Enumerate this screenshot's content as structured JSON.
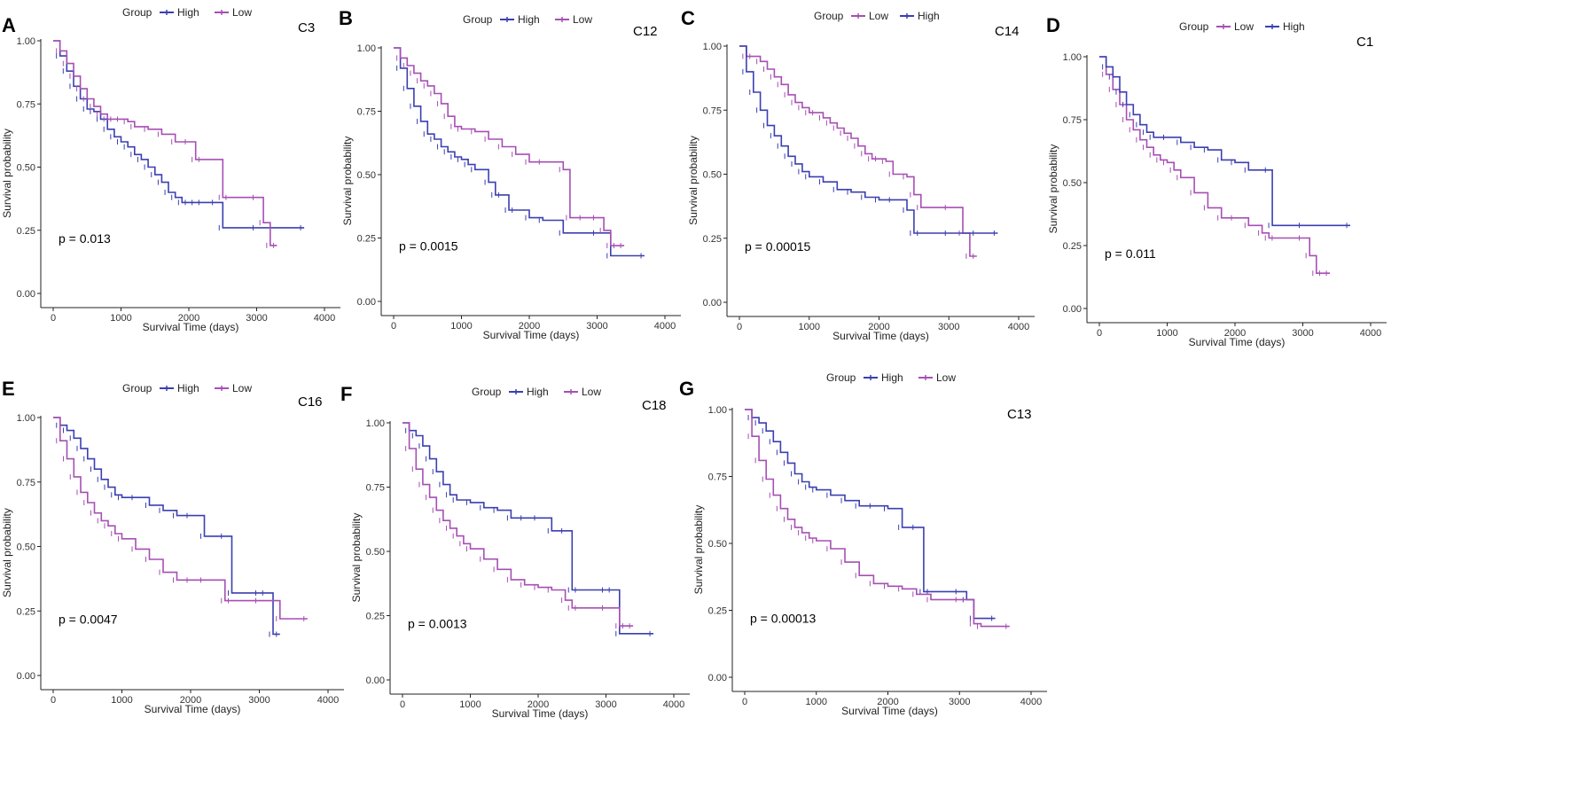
{
  "figure": {
    "axis_x_label": "Survival Time (days)",
    "axis_y_label": "Survival probability",
    "legend_title": "Group",
    "colors": {
      "High": "#3b3fb0",
      "Low": "#a64fb3",
      "axis": "#222222"
    }
  },
  "chart_data": [
    {
      "type": "line",
      "panel_letter": "A",
      "cluster": "C3",
      "p_value": "p = 0.013",
      "legend_order": [
        "High",
        "Low"
      ],
      "xlim": [
        0,
        4000
      ],
      "ylim": [
        0,
        1
      ],
      "x_ticks": [
        "0",
        "1000",
        "2000",
        "3000",
        "4000"
      ],
      "y_ticks": [
        "0.00",
        "0.25",
        "0.50",
        "0.75",
        "1.00"
      ],
      "series": [
        {
          "name": "High",
          "x": [
            0,
            100,
            200,
            300,
            400,
            500,
            600,
            700,
            800,
            900,
            1000,
            1100,
            1200,
            1300,
            1400,
            1500,
            1600,
            1700,
            1800,
            1900,
            2000,
            2100,
            2200,
            2400,
            2500,
            3000,
            3700
          ],
          "y": [
            1.0,
            0.94,
            0.88,
            0.82,
            0.77,
            0.73,
            0.72,
            0.69,
            0.65,
            0.62,
            0.6,
            0.58,
            0.55,
            0.53,
            0.5,
            0.47,
            0.44,
            0.4,
            0.38,
            0.36,
            0.36,
            0.36,
            0.36,
            0.36,
            0.26,
            0.26,
            0.26
          ]
        },
        {
          "name": "Low",
          "x": [
            0,
            100,
            200,
            300,
            400,
            500,
            600,
            700,
            800,
            900,
            1000,
            1100,
            1200,
            1400,
            1600,
            1800,
            2000,
            2100,
            2200,
            2500,
            2600,
            3000,
            3100,
            3200,
            3300
          ],
          "y": [
            1.0,
            0.96,
            0.91,
            0.86,
            0.81,
            0.77,
            0.74,
            0.71,
            0.69,
            0.69,
            0.69,
            0.68,
            0.66,
            0.65,
            0.63,
            0.6,
            0.6,
            0.53,
            0.53,
            0.38,
            0.38,
            0.38,
            0.28,
            0.19,
            0.19
          ]
        }
      ]
    },
    {
      "type": "line",
      "panel_letter": "B",
      "cluster": "C12",
      "p_value": "p = 0.0015",
      "legend_order": [
        "High",
        "Low"
      ],
      "xlim": [
        0,
        4000
      ],
      "ylim": [
        0,
        1
      ],
      "x_ticks": [
        "0",
        "1000",
        "2000",
        "3000",
        "4000"
      ],
      "y_ticks": [
        "0.00",
        "0.25",
        "0.50",
        "0.75",
        "1.00"
      ],
      "series": [
        {
          "name": "High",
          "x": [
            0,
            100,
            200,
            300,
            400,
            500,
            600,
            700,
            800,
            900,
            1000,
            1100,
            1200,
            1400,
            1500,
            1600,
            1700,
            1800,
            2000,
            2200,
            2500,
            3000,
            3200,
            3700
          ],
          "y": [
            1.0,
            0.92,
            0.84,
            0.77,
            0.71,
            0.66,
            0.64,
            0.61,
            0.59,
            0.57,
            0.56,
            0.54,
            0.52,
            0.47,
            0.42,
            0.42,
            0.36,
            0.36,
            0.33,
            0.32,
            0.27,
            0.27,
            0.18,
            0.18
          ]
        },
        {
          "name": "Low",
          "x": [
            0,
            100,
            200,
            300,
            400,
            500,
            600,
            700,
            800,
            900,
            1000,
            1200,
            1400,
            1600,
            1800,
            2000,
            2200,
            2500,
            2600,
            2800,
            3000,
            3100,
            3200,
            3300,
            3400
          ],
          "y": [
            1.0,
            0.96,
            0.93,
            0.9,
            0.87,
            0.85,
            0.82,
            0.78,
            0.73,
            0.69,
            0.68,
            0.67,
            0.64,
            0.61,
            0.58,
            0.55,
            0.55,
            0.52,
            0.33,
            0.33,
            0.33,
            0.28,
            0.22,
            0.22,
            0.22
          ]
        }
      ]
    },
    {
      "type": "line",
      "panel_letter": "C",
      "cluster": "C14",
      "p_value": "p = 0.00015",
      "legend_order": [
        "Low",
        "High"
      ],
      "xlim": [
        0,
        4000
      ],
      "ylim": [
        0,
        1
      ],
      "x_ticks": [
        "0",
        "1000",
        "2000",
        "3000",
        "4000"
      ],
      "y_ticks": [
        "0.00",
        "0.25",
        "0.50",
        "0.75",
        "1.00"
      ],
      "series": [
        {
          "name": "Low",
          "x": [
            0,
            100,
            200,
            300,
            400,
            500,
            600,
            700,
            800,
            900,
            1000,
            1100,
            1200,
            1300,
            1400,
            1500,
            1600,
            1700,
            1800,
            1900,
            2000,
            2100,
            2200,
            2400,
            2500,
            2600,
            3000,
            3200,
            3300,
            3400
          ],
          "y": [
            1.0,
            0.96,
            0.96,
            0.94,
            0.91,
            0.88,
            0.85,
            0.81,
            0.78,
            0.76,
            0.74,
            0.74,
            0.72,
            0.7,
            0.68,
            0.66,
            0.64,
            0.61,
            0.58,
            0.56,
            0.56,
            0.55,
            0.5,
            0.49,
            0.42,
            0.37,
            0.37,
            0.27,
            0.18,
            0.18
          ]
        },
        {
          "name": "High",
          "x": [
            0,
            100,
            200,
            300,
            400,
            500,
            600,
            700,
            800,
            900,
            1000,
            1200,
            1400,
            1600,
            1800,
            2000,
            2200,
            2400,
            2500,
            2600,
            3000,
            3400,
            3700
          ],
          "y": [
            1.0,
            0.9,
            0.82,
            0.75,
            0.69,
            0.65,
            0.61,
            0.57,
            0.54,
            0.51,
            0.49,
            0.47,
            0.44,
            0.43,
            0.41,
            0.4,
            0.4,
            0.36,
            0.27,
            0.27,
            0.27,
            0.27,
            0.27
          ]
        }
      ]
    },
    {
      "type": "line",
      "panel_letter": "D",
      "cluster": "C1",
      "p_value": "p = 0.011",
      "legend_order": [
        "Low",
        "High"
      ],
      "xlim": [
        0,
        4000
      ],
      "ylim": [
        0,
        1
      ],
      "x_ticks": [
        "0",
        "1000",
        "2000",
        "3000",
        "4000"
      ],
      "y_ticks": [
        "0.00",
        "0.25",
        "0.50",
        "0.75",
        "1.00"
      ],
      "series": [
        {
          "name": "Low",
          "x": [
            0,
            100,
            200,
            300,
            400,
            500,
            600,
            700,
            800,
            900,
            1000,
            1100,
            1200,
            1400,
            1600,
            1800,
            2000,
            2200,
            2400,
            2500,
            2600,
            3000,
            3100,
            3200,
            3300,
            3400
          ],
          "y": [
            1.0,
            0.93,
            0.87,
            0.81,
            0.75,
            0.71,
            0.67,
            0.64,
            0.61,
            0.59,
            0.58,
            0.55,
            0.52,
            0.46,
            0.4,
            0.36,
            0.36,
            0.33,
            0.3,
            0.28,
            0.28,
            0.28,
            0.21,
            0.14,
            0.14,
            0.14
          ]
        },
        {
          "name": "High",
          "x": [
            0,
            100,
            200,
            300,
            400,
            500,
            600,
            700,
            800,
            1000,
            1200,
            1400,
            1600,
            1800,
            2000,
            2200,
            2500,
            2550,
            3000,
            3700
          ],
          "y": [
            1.0,
            0.96,
            0.92,
            0.86,
            0.81,
            0.77,
            0.73,
            0.7,
            0.68,
            0.68,
            0.66,
            0.64,
            0.63,
            0.59,
            0.58,
            0.55,
            0.55,
            0.33,
            0.33,
            0.33
          ]
        }
      ]
    },
    {
      "type": "line",
      "panel_letter": "E",
      "cluster": "C16",
      "p_value": "p = 0.0047",
      "legend_order": [
        "High",
        "Low"
      ],
      "xlim": [
        0,
        4000
      ],
      "ylim": [
        0,
        1
      ],
      "x_ticks": [
        "0",
        "1000",
        "2000",
        "3000",
        "4000"
      ],
      "y_ticks": [
        "0.00",
        "0.25",
        "0.50",
        "0.75",
        "1.00"
      ],
      "series": [
        {
          "name": "High",
          "x": [
            0,
            100,
            200,
            300,
            400,
            500,
            600,
            700,
            800,
            900,
            1000,
            1200,
            1400,
            1600,
            1800,
            2000,
            2200,
            2500,
            2600,
            3000,
            3100,
            3200,
            3300
          ],
          "y": [
            1.0,
            0.97,
            0.95,
            0.92,
            0.88,
            0.84,
            0.8,
            0.76,
            0.73,
            0.7,
            0.69,
            0.69,
            0.66,
            0.64,
            0.62,
            0.62,
            0.54,
            0.54,
            0.32,
            0.32,
            0.32,
            0.16,
            0.16
          ]
        },
        {
          "name": "Low",
          "x": [
            0,
            100,
            200,
            300,
            400,
            500,
            600,
            700,
            800,
            900,
            1000,
            1200,
            1400,
            1600,
            1800,
            2000,
            2200,
            2500,
            2600,
            3000,
            3300,
            3700
          ],
          "y": [
            1.0,
            0.91,
            0.84,
            0.77,
            0.71,
            0.67,
            0.63,
            0.6,
            0.58,
            0.55,
            0.53,
            0.49,
            0.45,
            0.4,
            0.37,
            0.37,
            0.37,
            0.29,
            0.29,
            0.29,
            0.22,
            0.22
          ]
        }
      ]
    },
    {
      "type": "line",
      "panel_letter": "F",
      "cluster": "C18",
      "p_value": "p = 0.0013",
      "legend_order": [
        "High",
        "Low"
      ],
      "xlim": [
        0,
        4000
      ],
      "ylim": [
        0,
        1
      ],
      "x_ticks": [
        "0",
        "1000",
        "2000",
        "3000",
        "4000"
      ],
      "y_ticks": [
        "0.00",
        "0.25",
        "0.50",
        "0.75",
        "1.00"
      ],
      "series": [
        {
          "name": "High",
          "x": [
            0,
            100,
            200,
            300,
            400,
            500,
            600,
            700,
            800,
            1000,
            1200,
            1400,
            1600,
            1800,
            2000,
            2200,
            2400,
            2500,
            2600,
            3000,
            3100,
            3200,
            3700
          ],
          "y": [
            1.0,
            0.97,
            0.95,
            0.91,
            0.86,
            0.81,
            0.76,
            0.72,
            0.7,
            0.69,
            0.67,
            0.66,
            0.63,
            0.63,
            0.63,
            0.58,
            0.58,
            0.35,
            0.35,
            0.35,
            0.35,
            0.18,
            0.18
          ]
        },
        {
          "name": "Low",
          "x": [
            0,
            100,
            200,
            300,
            400,
            500,
            600,
            700,
            800,
            900,
            1000,
            1200,
            1400,
            1600,
            1800,
            2000,
            2200,
            2400,
            2500,
            2600,
            3000,
            3200,
            3300,
            3400
          ],
          "y": [
            1.0,
            0.9,
            0.82,
            0.76,
            0.71,
            0.66,
            0.62,
            0.59,
            0.56,
            0.53,
            0.51,
            0.47,
            0.43,
            0.39,
            0.37,
            0.36,
            0.35,
            0.31,
            0.28,
            0.28,
            0.28,
            0.21,
            0.21,
            0.21
          ]
        }
      ]
    },
    {
      "type": "line",
      "panel_letter": "G",
      "cluster": "C13",
      "p_value": "p = 0.00013",
      "legend_order": [
        "High",
        "Low"
      ],
      "xlim": [
        0,
        4000
      ],
      "ylim": [
        0,
        1
      ],
      "x_ticks": [
        "0",
        "1000",
        "2000",
        "3000",
        "4000"
      ],
      "y_ticks": [
        "0.00",
        "0.25",
        "0.50",
        "0.75",
        "1.00"
      ],
      "series": [
        {
          "name": "High",
          "x": [
            0,
            100,
            200,
            300,
            400,
            500,
            600,
            700,
            800,
            900,
            1000,
            1200,
            1400,
            1600,
            1800,
            2000,
            2200,
            2400,
            2500,
            2600,
            3000,
            3100,
            3200,
            3500
          ],
          "y": [
            1.0,
            0.97,
            0.95,
            0.92,
            0.88,
            0.84,
            0.8,
            0.76,
            0.73,
            0.71,
            0.7,
            0.68,
            0.66,
            0.64,
            0.64,
            0.63,
            0.56,
            0.56,
            0.32,
            0.32,
            0.32,
            0.29,
            0.22,
            0.22
          ]
        },
        {
          "name": "Low",
          "x": [
            0,
            100,
            200,
            300,
            400,
            500,
            600,
            700,
            800,
            900,
            1000,
            1200,
            1400,
            1600,
            1800,
            2000,
            2200,
            2400,
            2600,
            3000,
            3200,
            3300,
            3700
          ],
          "y": [
            1.0,
            0.9,
            0.81,
            0.74,
            0.68,
            0.63,
            0.59,
            0.56,
            0.54,
            0.52,
            0.51,
            0.48,
            0.43,
            0.38,
            0.35,
            0.34,
            0.33,
            0.31,
            0.29,
            0.29,
            0.2,
            0.19,
            0.19
          ]
        }
      ]
    }
  ]
}
